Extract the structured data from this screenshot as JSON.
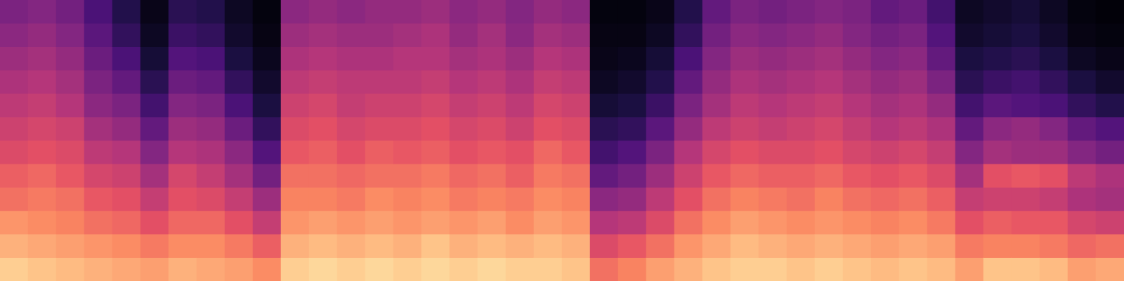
{
  "chart_data": {
    "type": "heatmap",
    "tick_labels": false,
    "zlim": [
      0,
      100
    ],
    "cells": [
      [
        90,
        84,
        78,
        70,
        66,
        60,
        56,
        52,
        48,
        44,
        40,
        36
      ],
      [
        88,
        82,
        76,
        72,
        68,
        62,
        58,
        54,
        50,
        46,
        42,
        38
      ],
      [
        86,
        80,
        74,
        70,
        64,
        60,
        56,
        50,
        46,
        42,
        38,
        34
      ],
      [
        84,
        78,
        70,
        64,
        58,
        52,
        46,
        40,
        36,
        32,
        28,
        24
      ],
      [
        82,
        76,
        68,
        62,
        56,
        50,
        42,
        36,
        30,
        24,
        18,
        14
      ],
      [
        80,
        72,
        62,
        54,
        46,
        38,
        30,
        22,
        16,
        10,
        6,
        4
      ],
      [
        84,
        76,
        68,
        62,
        58,
        50,
        44,
        38,
        32,
        26,
        20,
        16
      ],
      [
        82,
        76,
        68,
        60,
        54,
        48,
        42,
        36,
        30,
        24,
        18,
        14
      ],
      [
        80,
        72,
        62,
        54,
        46,
        40,
        32,
        24,
        18,
        12,
        8,
        6
      ],
      [
        76,
        66,
        54,
        44,
        34,
        26,
        18,
        12,
        8,
        5,
        3,
        2
      ],
      [
        90,
        84,
        78,
        74,
        70,
        64,
        60,
        56,
        52,
        48,
        44,
        40
      ],
      [
        92,
        86,
        80,
        74,
        70,
        66,
        62,
        58,
        54,
        50,
        46,
        42
      ],
      [
        90,
        84,
        78,
        72,
        68,
        62,
        58,
        54,
        52,
        48,
        44,
        40
      ],
      [
        92,
        86,
        80,
        76,
        70,
        66,
        60,
        56,
        52,
        48,
        44,
        42
      ],
      [
        90,
        84,
        78,
        74,
        70,
        64,
        60,
        56,
        52,
        50,
        46,
        42
      ],
      [
        92,
        88,
        80,
        76,
        72,
        66,
        62,
        58,
        54,
        50,
        48,
        44
      ],
      [
        90,
        84,
        78,
        72,
        68,
        62,
        58,
        54,
        50,
        46,
        42,
        40
      ],
      [
        92,
        86,
        80,
        74,
        70,
        64,
        60,
        56,
        52,
        48,
        46,
        42
      ],
      [
        90,
        84,
        76,
        72,
        66,
        62,
        56,
        52,
        48,
        44,
        40,
        38
      ],
      [
        90,
        86,
        80,
        76,
        72,
        68,
        62,
        58,
        54,
        50,
        46,
        42
      ],
      [
        88,
        84,
        78,
        74,
        70,
        64,
        60,
        56,
        52,
        48,
        44,
        40
      ],
      [
        70,
        60,
        50,
        40,
        30,
        22,
        16,
        10,
        6,
        4,
        3,
        2
      ],
      [
        74,
        64,
        52,
        42,
        34,
        26,
        18,
        12,
        8,
        5,
        3,
        2
      ],
      [
        80,
        70,
        60,
        52,
        44,
        36,
        28,
        20,
        14,
        10,
        6,
        4
      ],
      [
        84,
        78,
        70,
        62,
        56,
        50,
        42,
        36,
        30,
        24,
        18,
        14
      ],
      [
        88,
        82,
        76,
        70,
        64,
        58,
        52,
        46,
        42,
        38,
        34,
        30
      ],
      [
        90,
        86,
        80,
        74,
        68,
        62,
        56,
        52,
        48,
        44,
        40,
        36
      ],
      [
        90,
        84,
        78,
        72,
        66,
        60,
        54,
        50,
        46,
        42,
        38,
        34
      ],
      [
        88,
        82,
        76,
        70,
        66,
        60,
        56,
        52,
        48,
        44,
        40,
        36
      ],
      [
        90,
        84,
        78,
        74,
        68,
        62,
        58,
        54,
        50,
        46,
        42,
        38
      ],
      [
        88,
        82,
        76,
        70,
        64,
        58,
        54,
        50,
        46,
        42,
        38,
        36
      ],
      [
        86,
        80,
        74,
        68,
        62,
        56,
        50,
        46,
        42,
        38,
        34,
        30
      ],
      [
        88,
        82,
        76,
        70,
        64,
        58,
        52,
        48,
        44,
        40,
        36,
        32
      ],
      [
        86,
        80,
        72,
        66,
        60,
        54,
        48,
        42,
        36,
        30,
        26,
        22
      ],
      [
        80,
        72,
        62,
        54,
        46,
        38,
        30,
        22,
        16,
        12,
        8,
        6
      ],
      [
        88,
        74,
        66,
        56,
        62,
        46,
        40,
        28,
        20,
        14,
        10,
        8
      ],
      [
        88,
        74,
        64,
        56,
        64,
        44,
        42,
        26,
        22,
        16,
        12,
        10
      ],
      [
        86,
        72,
        64,
        54,
        62,
        44,
        38,
        24,
        18,
        12,
        8,
        6
      ],
      [
        80,
        68,
        58,
        48,
        52,
        38,
        30,
        18,
        12,
        6,
        3,
        2
      ],
      [
        82,
        70,
        56,
        46,
        48,
        34,
        26,
        14,
        8,
        4,
        2,
        1
      ]
    ]
  }
}
